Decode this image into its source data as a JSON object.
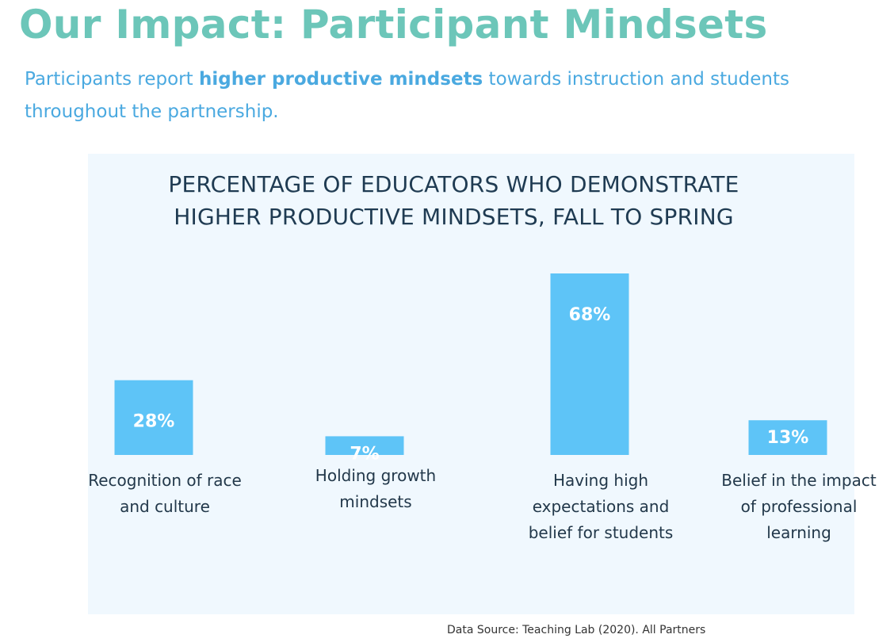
{
  "header": {
    "title": "Our Impact: Participant Mindsets",
    "subtitle_before": "Participants report ",
    "subtitle_bold": "higher productive mindsets",
    "subtitle_after": " towards instruction and students throughout the partnership."
  },
  "chart_data": {
    "type": "bar",
    "title_line1": "PERCENTAGE OF EDUCATORS WHO DEMONSTRATE",
    "title_line2": "HIGHER PRODUCTIVE MINDSETS, FALL TO SPRING",
    "categories": [
      "Recognition of race and culture",
      "Holding growth mindsets",
      "Having high expectations and belief for students",
      "Belief in the impact of professional learning"
    ],
    "values": [
      28,
      7,
      68,
      13
    ],
    "value_labels": [
      "28%",
      "7%",
      "68%",
      "13%"
    ],
    "unit": "%",
    "ylim": [
      0,
      70
    ],
    "grid": false,
    "legend": "none",
    "bar_color": "#5ec4f7",
    "label_color": "#ffffff"
  },
  "footer": {
    "source": "Data Source: Teaching Lab (2020). All Partners"
  }
}
